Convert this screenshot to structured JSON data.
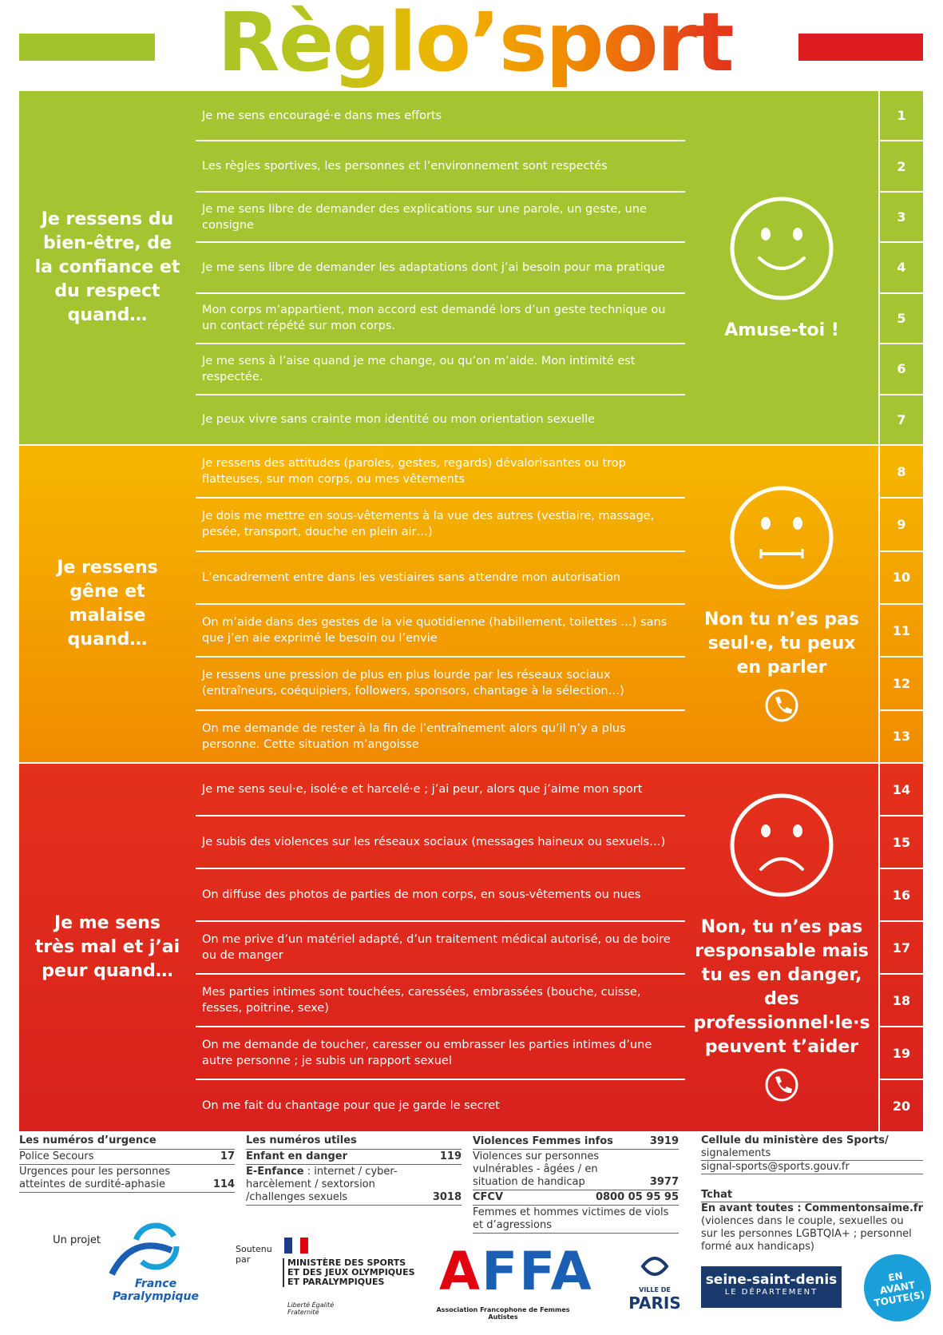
{
  "title": "Règlo’sport",
  "sections": [
    {
      "heading": "Je ressens du bien-être, de la confiance et du respect quand…",
      "message": "Amuse-toi !",
      "items": [
        {
          "number": 1,
          "text": "Je me sens encouragé·e dans mes efforts"
        },
        {
          "number": 2,
          "text": "Les règles sportives, les personnes et l’environnement sont respectés"
        },
        {
          "number": 3,
          "text": "Je me sens libre de demander des explications sur une parole, un geste, une consigne"
        },
        {
          "number": 4,
          "text": "Je me sens libre de demander les adaptations dont j’ai besoin pour ma pratique"
        },
        {
          "number": 5,
          "text": "Mon corps m’appartient, mon accord est demandé lors d’un geste technique ou un contact répété sur mon corps."
        },
        {
          "number": 6,
          "text": "Je me sens à l’aise quand je me change, ou qu’on m’aide. Mon intimité est respectée."
        },
        {
          "number": 7,
          "text": "Je peux vivre sans crainte mon identité ou mon orientation sexuelle"
        }
      ]
    },
    {
      "heading": "Je ressens gêne et malaise quand…",
      "message": "Non tu n’es pas seul·e, tu peux en parler",
      "items": [
        {
          "number": 8,
          "text": "Je ressens des attitudes (paroles, gestes, regards) dévalorisantes ou trop flatteuses, sur mon corps, ou mes vêtements"
        },
        {
          "number": 9,
          "text": "Je dois me mettre en sous-vêtements à la vue des autres (vestiaire, massage, pesée, transport, douche en plein air…)"
        },
        {
          "number": 10,
          "text": "L’encadrement entre dans les vestiaires sans attendre mon autorisation"
        },
        {
          "number": 11,
          "text": "On m’aide dans des gestes de la vie quotidienne (habillement, toilettes …) sans que j’en aie exprimé le besoin ou l’envie"
        },
        {
          "number": 12,
          "text": "Je ressens une pression de plus en plus lourde par les réseaux sociaux (entraîneurs, coéquipiers, followers, sponsors, chantage à la sélection…)"
        },
        {
          "number": 13,
          "text": "On me demande de rester à la fin de l’entraînement alors qu’il n’y a plus personne. Cette situation m’angoisse"
        }
      ]
    },
    {
      "heading": "Je me sens très mal et j’ai peur quand…",
      "message": "Non, tu n’es pas responsable mais tu es en danger, des professionnel·le·s peuvent t’aider",
      "items": [
        {
          "number": 14,
          "text": "Je me sens seul·e, isolé·e et harcelé·e ; j’ai peur, alors que j’aime mon sport"
        },
        {
          "number": 15,
          "text": "Je subis des violences sur les réseaux sociaux (messages haineux ou sexuels…)"
        },
        {
          "number": 16,
          "text": "On diffuse des photos de parties de mon corps, en sous-vêtements ou nues"
        },
        {
          "number": 17,
          "text": "On me prive d’un matériel adapté, d’un traitement médical autorisé, ou de boire ou de manger"
        },
        {
          "number": 18,
          "text": "Mes parties intimes sont touchées, caressées, embrassées (bouche, cuisse, fesses, poitrine, sexe)"
        },
        {
          "number": 19,
          "text": "On me demande de toucher, caresser ou embrasser les parties intimes d’une autre personne ; je subis un rapport sexuel"
        },
        {
          "number": 20,
          "text": "On me fait du chantage pour que je garde le secret"
        }
      ]
    }
  ],
  "footer": {
    "emergency": {
      "title": "Les numéros d’urgence",
      "entries": [
        {
          "label": "Police Secours",
          "number": "17"
        },
        {
          "label": "Urgences pour les personnes atteintes de surdité-aphasie",
          "number": "114"
        }
      ]
    },
    "useful": {
      "title": "Les numéros utiles",
      "entries": [
        {
          "label": "Enfant en danger",
          "number": "119"
        },
        {
          "name": "E-Enfance",
          "label": " : internet / cyber-harcèlement / sextorsion /challenges sexuels",
          "number": "3018"
        }
      ]
    },
    "women": {
      "entries": [
        {
          "label": "Violences Femmes infos",
          "number": "3919"
        },
        {
          "label": "Violences sur personnes vulnérables - âgées / en situation de handicap",
          "number": "3977"
        },
        {
          "label": "CFCV",
          "number": "0800 05 95 95"
        },
        {
          "label": "Femmes et hommes victimes de viols et d’agressions"
        }
      ]
    },
    "ministry": {
      "title": "Cellule du ministère des Sports/",
      "subtitle": "signalements",
      "email": "signal-sports@sports.gouv.fr",
      "chat": "Tchat",
      "chat_name": "En avant toutes :",
      "chat_site": "Commentonsaime.fr",
      "chat_desc": "(violences dans le couple, sexuelles ou sur les personnes LGBTQIA+ ; personnel formé aux handicaps)"
    }
  },
  "logos": {
    "project": "Un projet",
    "fp1": "France",
    "fp2": "Paralympique",
    "support": "Soutenu par",
    "ministry": "MINISTÈRE DES SPORTS ET DES JEUX OLYMPIQUES ET PARALYMPIQUES",
    "motto": "Liberté Égalité Fraternité",
    "affa": "AFFA",
    "affa_name": "Association Francophone de Femmes Autistes",
    "paris1": "VILLE DE",
    "paris2": "PARIS",
    "ssd1": "seine-saint-denis",
    "ssd2": "LE DÉPARTEMENT",
    "eat": "EN AVANT TOUTE(S)"
  }
}
